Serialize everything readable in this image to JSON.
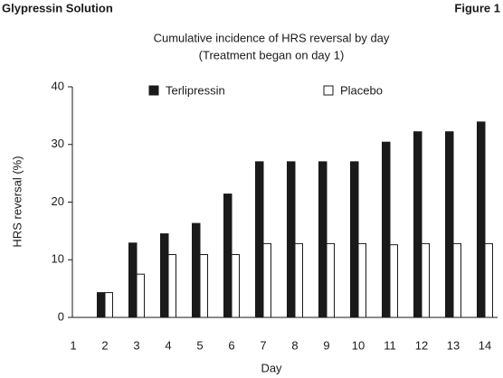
{
  "header": {
    "left": "Glypressin Solution",
    "right": "Figure 1"
  },
  "chart_data": {
    "type": "bar",
    "title": "Cumulative incidence of HRS reversal by day",
    "subtitle": "(Treatment began on day 1)",
    "x_label": "Day",
    "y_label": "HRS reversal (%)",
    "x": [
      1,
      2,
      3,
      4,
      5,
      6,
      7,
      8,
      9,
      10,
      11,
      12,
      13,
      14
    ],
    "xlim": [
      1,
      14.4
    ],
    "xticks": [
      1,
      2,
      3,
      4,
      5,
      6,
      7,
      8,
      9,
      10,
      11,
      12,
      13,
      14
    ],
    "ylim": [
      0,
      40
    ],
    "yticks": [
      0,
      10,
      20,
      30,
      40
    ],
    "legend": "top",
    "series": [
      {
        "name": "Terlipressin",
        "color": "#1a1a1a",
        "values": [
          null,
          4.3,
          12.9,
          14.5,
          16.3,
          21.4,
          27,
          27,
          27,
          27,
          30.4,
          32.2,
          32.2,
          33.9
        ]
      },
      {
        "name": "Placebo",
        "color": "#ffffff",
        "values": [
          null,
          4.3,
          7.5,
          10.9,
          10.9,
          10.9,
          12.8,
          12.8,
          12.8,
          12.8,
          12.6,
          12.8,
          12.8,
          12.8
        ]
      }
    ]
  }
}
